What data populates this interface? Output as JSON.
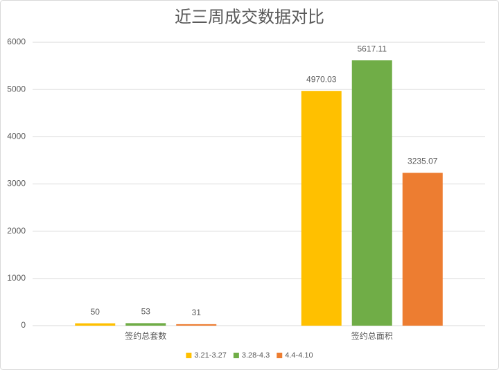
{
  "chart_data": {
    "type": "bar",
    "title": "近三周成交数据对比",
    "categories": [
      "签约总套数",
      "签约总面积"
    ],
    "series": [
      {
        "name": "3.21-3.27",
        "color": "#FFC000",
        "values": [
          50,
          4970.03
        ]
      },
      {
        "name": "3.28-4.3",
        "color": "#70AD47",
        "values": [
          53,
          5617.11
        ]
      },
      {
        "name": "4.4-4.10",
        "color": "#ED7D31",
        "values": [
          31,
          3235.07
        ]
      }
    ],
    "ylim": [
      0,
      6000
    ],
    "yticks": [
      0,
      1000,
      2000,
      3000,
      4000,
      5000,
      6000
    ],
    "grid": true,
    "legend": "bottom"
  }
}
